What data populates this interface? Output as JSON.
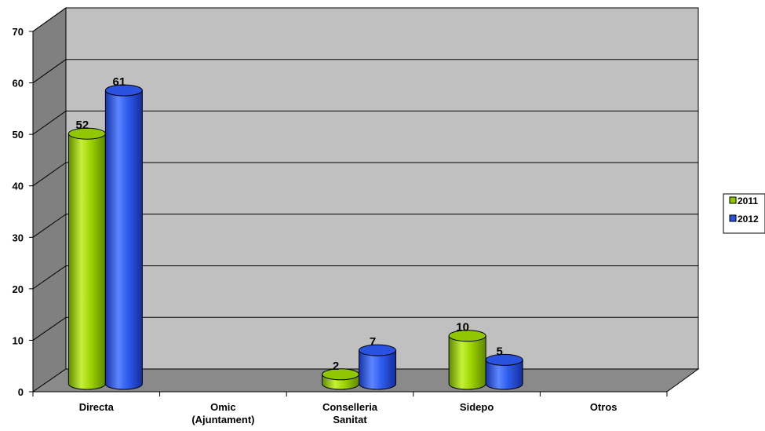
{
  "chart_data": {
    "type": "bar",
    "categories": [
      [
        "Directa"
      ],
      [
        "Omic",
        "(Ajuntament)"
      ],
      [
        "Conselleria",
        "Sanitat"
      ],
      [
        "Sidepo"
      ],
      [
        "Otros"
      ]
    ],
    "series": [
      {
        "name": "2011",
        "values": [
          52,
          0,
          2,
          10,
          0
        ],
        "labels": [
          "52",
          null,
          "2",
          "10",
          null
        ],
        "color": "#8fc700"
      },
      {
        "name": "2012",
        "values": [
          61,
          0,
          7,
          5,
          0
        ],
        "labels": [
          "61",
          null,
          "7",
          "5",
          null
        ],
        "color": "#2a52e0"
      }
    ],
    "yticks": [
      "0",
      "10",
      "20",
      "30",
      "40",
      "50",
      "60",
      "70"
    ],
    "ylim": [
      0,
      70
    ],
    "grid": true,
    "three_d": true,
    "legend_position": "right",
    "colors": {
      "back_wall": "#c0c0c0",
      "side_wall": "#808080",
      "floor": "#8a8a8a",
      "gridline": "#000000"
    }
  }
}
